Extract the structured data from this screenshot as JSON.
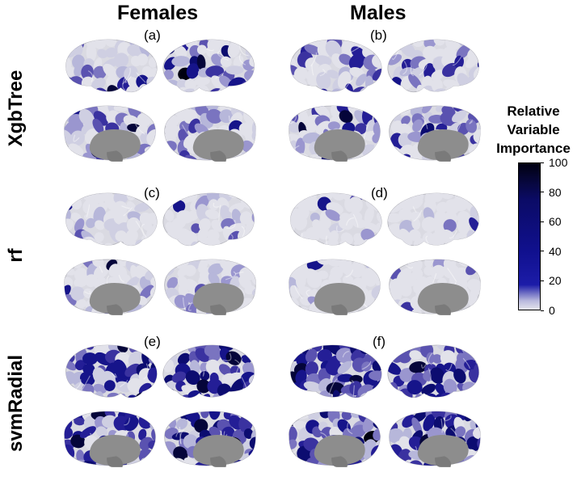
{
  "columns": [
    "Females",
    "Males"
  ],
  "rows": [
    "XgbTree",
    "rf",
    "svmRadial"
  ],
  "panels": [
    "(a)",
    "(b)",
    "(c)",
    "(d)",
    "(e)",
    "(f)"
  ],
  "legend": {
    "title_lines": [
      "Relative",
      "Variable",
      "Importance"
    ],
    "ticks": [
      "100",
      "80",
      "60",
      "40",
      "20",
      "0"
    ],
    "colors": {
      "low": "#e4e4ec",
      "mid": "#12129a",
      "high": "#000010"
    }
  },
  "brain_colors": {
    "surface": "#dadae2",
    "midwall": "#8d8d8d",
    "shade": "#c4c4cc"
  }
}
